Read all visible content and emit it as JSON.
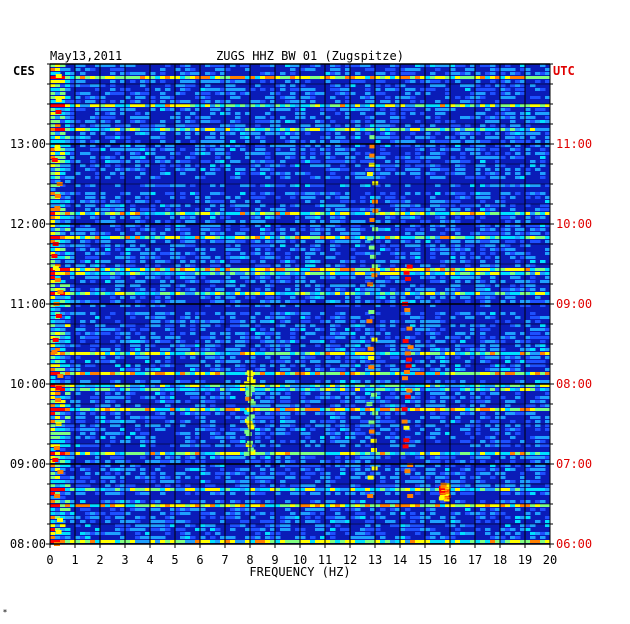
{
  "header": {
    "date": "May13,2011",
    "station": "ZUGS HHZ BW 01 (Zugspitze)"
  },
  "labels": {
    "left_zone": "CES",
    "right_zone": "UTC",
    "corner_mark": "*"
  },
  "colors": {
    "background": "#0a1cb8",
    "left_time": "#000000",
    "right_time": "#e00000",
    "grid": "#000000"
  },
  "chart_data": {
    "type": "heatmap",
    "title": "ZUGS HHZ BW 01 (Zugspitze)",
    "xlabel": "FREQUENCY (HZ)",
    "ylabel": "",
    "x_ticks": [
      "0",
      "1",
      "2",
      "3",
      "4",
      "5",
      "6",
      "7",
      "8",
      "9",
      "10",
      "11",
      "12",
      "13",
      "14",
      "15",
      "16",
      "17",
      "18",
      "19",
      "20"
    ],
    "xlim": [
      0,
      20
    ],
    "y_ticks_left": [
      "08:00",
      "09:00",
      "10:00",
      "11:00",
      "12:00",
      "13:00"
    ],
    "y_ticks_right": [
      "06:00",
      "07:00",
      "08:00",
      "09:00",
      "10:00",
      "11:00"
    ],
    "ylim_hours_local": [
      8,
      14
    ],
    "grid": true,
    "colorscale": [
      "#000080",
      "#0a1cb8",
      "#1e50ff",
      "#1ea0ff",
      "#00e0ff",
      "#80ff80",
      "#ffff00",
      "#ff8000",
      "#ff0000"
    ],
    "features": [
      {
        "description_hz": 0.3,
        "t_start": 8.0,
        "t_end": 14.0,
        "intensity": 0.7
      },
      {
        "description_hz": 8.0,
        "t_start": 9.1,
        "t_end": 10.2,
        "intensity": 0.55
      },
      {
        "description_hz": 12.9,
        "t_start": 8.6,
        "t_end": 13.2,
        "intensity": 0.6
      },
      {
        "description_hz": 14.3,
        "t_start": 8.6,
        "t_end": 11.7,
        "intensity": 0.8
      },
      {
        "description_hz": 15.8,
        "t_start": 8.55,
        "t_end": 8.75,
        "intensity": 0.7
      }
    ]
  }
}
